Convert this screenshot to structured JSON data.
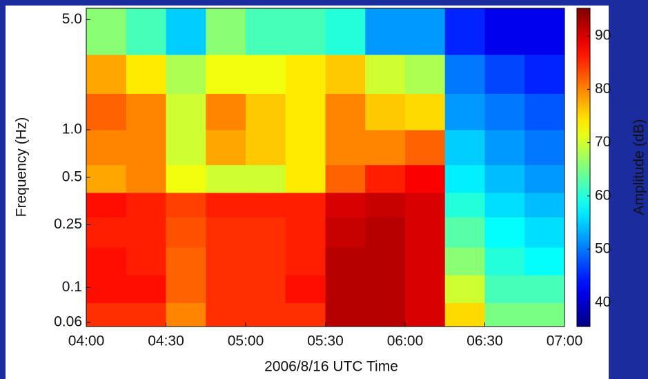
{
  "chart_data": {
    "type": "heatmap",
    "x_label": "2006/8/16 UTC Time",
    "y_label": "Frequency (Hz)",
    "colorbar_label": "Amplitude (dB)",
    "y_scale": "log",
    "xlim": [
      4,
      7
    ],
    "xticks": [
      {
        "value": 4,
        "label": "04:00"
      },
      {
        "value": 4.5,
        "label": "04:30"
      },
      {
        "value": 5,
        "label": "05:00"
      },
      {
        "value": 5.5,
        "label": "05:30"
      },
      {
        "value": 6,
        "label": "06:00"
      },
      {
        "value": 6.5,
        "label": "06:30"
      },
      {
        "value": 7,
        "label": "07:00"
      }
    ],
    "ylim": [
      0.0565,
      5.9
    ],
    "yticks": [
      {
        "value": 5,
        "label": "5.0"
      },
      {
        "value": 1,
        "label": "1.0"
      },
      0.5,
      0.25,
      0.1,
      0.06
    ],
    "clim": [
      35.5,
      95.2
    ],
    "cticks": [
      40,
      50,
      60,
      70,
      80,
      90
    ],
    "colormap": "jet",
    "x_edges": [
      4,
      4.25,
      4.5,
      4.75,
      5,
      5.25,
      5.5,
      5.75,
      6,
      6.25,
      6.5,
      6.75,
      7
    ],
    "y_edges": [
      0.0565,
      0.08,
      0.12,
      0.18,
      0.28,
      0.4,
      0.6,
      1.0,
      1.7,
      3.0,
      5.9
    ],
    "z": [
      [
        85,
        85,
        80,
        85,
        85,
        85,
        92,
        92,
        90,
        75,
        65,
        65
      ],
      [
        87,
        87,
        82,
        85,
        85,
        87,
        92,
        92,
        90,
        70,
        62,
        62
      ],
      [
        87,
        86,
        82,
        85,
        85,
        86,
        92,
        92,
        90,
        66,
        60,
        58
      ],
      [
        86,
        86,
        83,
        85,
        85,
        86,
        91,
        92,
        90,
        63,
        58,
        56
      ],
      [
        87,
        86,
        84,
        86,
        86,
        86,
        90,
        91,
        90,
        60,
        56,
        54
      ],
      [
        78,
        80,
        72,
        70,
        70,
        74,
        82,
        86,
        88,
        57,
        54,
        52
      ],
      [
        80,
        80,
        70,
        78,
        76,
        74,
        80,
        80,
        82,
        55,
        52,
        50
      ],
      [
        82,
        80,
        70,
        80,
        76,
        74,
        80,
        76,
        75,
        52,
        50,
        48
      ],
      [
        78,
        74,
        68,
        72,
        72,
        74,
        76,
        70,
        68,
        50,
        47,
        45
      ],
      [
        66,
        62,
        55,
        66,
        62,
        62,
        60,
        52,
        52,
        45,
        42,
        42
      ]
    ]
  }
}
